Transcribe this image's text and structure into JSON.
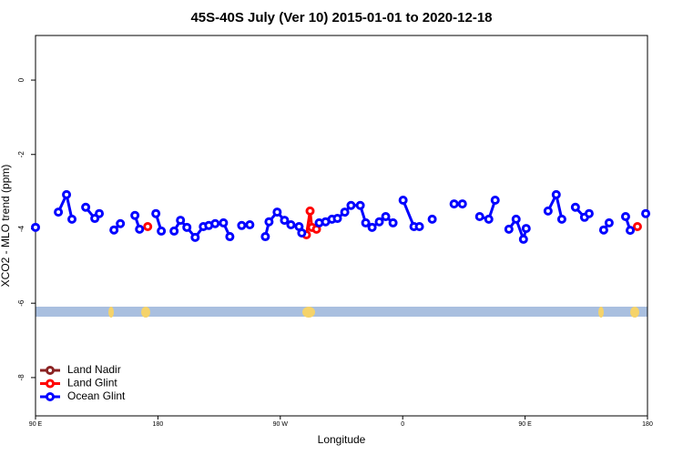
{
  "chart_data": {
    "type": "line",
    "title": "45S-40S July (Ver 10)   2015-01-01 to 2020-12-18",
    "x_label": "Longitude",
    "y_label": "XCO2 - MLO trend (ppm)",
    "xlim": [
      90,
      540
    ],
    "xticks": [
      {
        "value": 90,
        "label": "90 E"
      },
      {
        "value": 180,
        "label": "180"
      },
      {
        "value": 270,
        "label": "90 W"
      },
      {
        "value": 360,
        "label": "0"
      },
      {
        "value": 450,
        "label": "90 E"
      },
      {
        "value": 540,
        "label": "180"
      }
    ],
    "ylim": [
      -9.03,
      1.2
    ],
    "yticks": [
      0,
      -2,
      -4,
      -6,
      -8
    ],
    "legend": "bottom-left",
    "series": [
      {
        "name": "Land Nadir",
        "color": "#8b2323",
        "x": [],
        "values": []
      },
      {
        "name": "Land Glint",
        "color": "#ff0000",
        "x": [
          172.5,
          null,
          289.2,
          291.9,
          293.2,
          296.6,
          null,
          532.6
        ],
        "values": [
          -3.94,
          null,
          -4.16,
          -3.52,
          -3.96,
          -4.01,
          null,
          -3.94
        ]
      },
      {
        "name": "Ocean Glint",
        "color": "#0000ff",
        "x": [
          90,
          null,
          106.8,
          112.8,
          116.8,
          null,
          126.9,
          133.6,
          136.9,
          null,
          147.7,
          152.4,
          null,
          163.1,
          166.5,
          null,
          178.5,
          182.5,
          null,
          191.9,
          196.6,
          201.3,
          207.4,
          213.4,
          217.4,
          222.1,
          228.2,
          232.9,
          null,
          241.6,
          247.6,
          null,
          259,
          261.7,
          267.7,
          273.1,
          277.8,
          283.8,
          285.8,
          null,
          298.6,
          303.3,
          308,
          312,
          317.4,
          322,
          328.8,
          332.8,
          337.5,
          342.8,
          347.5,
          352.9,
          null,
          360.3,
          368.3,
          372.3,
          null,
          381.7,
          null,
          397.8,
          403.9,
          null,
          416.6,
          423.3,
          428,
          null,
          438.1,
          443.4,
          448.8,
          450.8,
          null,
          466.9,
          472.9,
          477,
          null,
          487,
          493.7,
          497.1,
          null,
          507.8,
          511.8,
          null,
          523.9,
          527.3,
          null,
          538.7
        ],
        "values": [
          -3.96,
          null,
          -3.55,
          -3.08,
          -3.74,
          null,
          -3.42,
          -3.72,
          -3.59,
          null,
          -4.03,
          -3.86,
          null,
          -3.64,
          -4.01,
          null,
          -3.59,
          -4.06,
          null,
          -4.06,
          -3.77,
          -3.96,
          -4.23,
          -3.94,
          -3.91,
          -3.86,
          -3.84,
          -4.21,
          null,
          -3.91,
          -3.89,
          null,
          -4.21,
          -3.81,
          -3.55,
          -3.77,
          -3.89,
          -3.94,
          -4.11,
          null,
          -3.84,
          -3.81,
          -3.74,
          -3.72,
          -3.55,
          -3.37,
          -3.37,
          -3.84,
          -3.96,
          -3.81,
          -3.67,
          -3.84,
          null,
          -3.23,
          -3.94,
          -3.94,
          null,
          -3.74,
          null,
          -3.33,
          -3.33,
          null,
          -3.67,
          -3.74,
          -3.23,
          null,
          -4.01,
          -3.74,
          -4.28,
          -3.99,
          null,
          -3.52,
          -3.08,
          -3.74,
          null,
          -3.42,
          -3.69,
          -3.59,
          null,
          -4.03,
          -3.84,
          null,
          -3.67,
          -4.04,
          null,
          -3.59
        ]
      }
    ]
  }
}
